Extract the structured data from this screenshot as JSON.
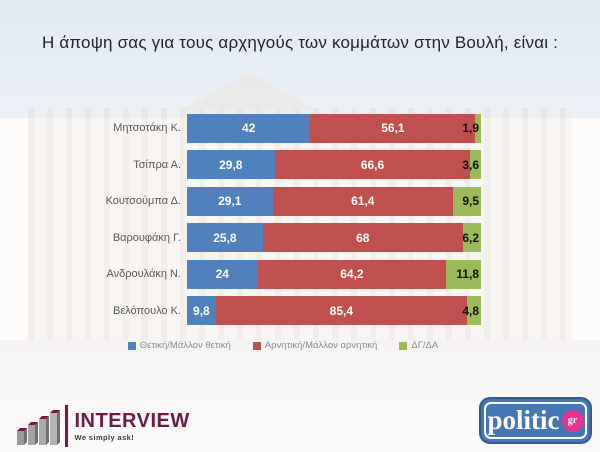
{
  "title": "Η άποψη σας για τους αρχηγούς των κομμάτων στην Βουλή,  είναι :",
  "chart_data": {
    "type": "bar",
    "orientation": "horizontal",
    "stacked": true,
    "xlim": [
      0,
      100
    ],
    "grid": false,
    "legend_position": "bottom",
    "categories": [
      "Μητσοτάκη Κ.",
      "Τσίπρα Α.",
      "Κουτσούμπα Δ.",
      "Βαρουφάκη Γ.",
      "Ανδρουλάκη Ν.",
      "Βελόπουλο Κ."
    ],
    "series": [
      {
        "name": "Θετική/Μάλλον θετική",
        "color": "#4f81bd",
        "values": [
          42,
          29.8,
          29.1,
          25.8,
          24,
          9.8
        ],
        "labels": [
          "42",
          "29,8",
          "29,1",
          "25,8",
          "24",
          "9,8"
        ]
      },
      {
        "name": "Αρνητική/Μάλλον αρνητική",
        "color": "#c0504d",
        "values": [
          56.1,
          66.6,
          61.4,
          68,
          64.2,
          85.4
        ],
        "labels": [
          "56,1",
          "66,6",
          "61,4",
          "68",
          "64,2",
          "85,4"
        ]
      },
      {
        "name": "ΔΓ/ΔΑ",
        "color": "#9bbb59",
        "values": [
          1.9,
          3.6,
          9.5,
          6.2,
          11.8,
          4.8
        ],
        "labels": [
          "1,9",
          "3,6",
          "9,5",
          "6,2",
          "11,8",
          "4,8"
        ]
      }
    ]
  },
  "footer": {
    "interview": {
      "name": "INTERVIEW",
      "tagline": "We simply ask!"
    },
    "politic": {
      "text": "politic",
      "suffix": "gr"
    }
  },
  "colors": {
    "positive": "#4f81bd",
    "negative": "#c0504d",
    "dontknow": "#9bbb59",
    "interview_maroon": "#6e1a47",
    "politic_blue": "#4577b6",
    "politic_pink": "#e5348c"
  }
}
